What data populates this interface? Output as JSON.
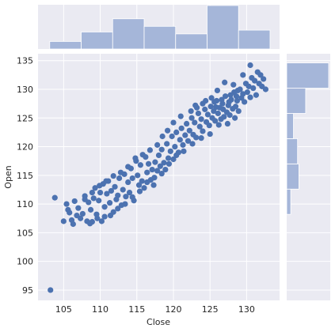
{
  "chart_data": {
    "type": "scatter",
    "xlabel": "Close",
    "ylabel": "Open",
    "xlim": [
      101.5,
      134.5
    ],
    "ylim": [
      93.2,
      136.2
    ],
    "xticks": [
      105,
      110,
      115,
      120,
      125,
      130
    ],
    "yticks": [
      95,
      100,
      105,
      110,
      115,
      120,
      125,
      130,
      135
    ],
    "colors": {
      "points": "#4c72b0",
      "hist": "#a5b6d9",
      "panel": "#eaeaf2"
    },
    "marginal_x_hist": {
      "bin_edges": [
        103.1,
        107.4,
        111.7,
        116.0,
        120.3,
        124.6,
        128.9,
        133.2
      ],
      "counts": [
        4,
        9,
        16,
        12,
        8,
        23,
        10
      ]
    },
    "marginal_y_hist": {
      "bin_edges": [
        95.0,
        99.4,
        103.8,
        108.2,
        112.6,
        117.0,
        121.4,
        125.8,
        130.2,
        134.6
      ],
      "counts": [
        0,
        0,
        0,
        3,
        9,
        8,
        5,
        14,
        31
      ]
    },
    "points": [
      [
        103.2,
        95.0
      ],
      [
        103.8,
        111.1
      ],
      [
        105.0,
        107.0
      ],
      [
        105.4,
        110.0
      ],
      [
        105.8,
        108.5
      ],
      [
        106.1,
        107.2
      ],
      [
        106.3,
        106.5
      ],
      [
        106.5,
        110.5
      ],
      [
        106.8,
        108.0
      ],
      [
        107.0,
        109.3
      ],
      [
        107.3,
        107.5
      ],
      [
        107.6,
        108.3
      ],
      [
        107.9,
        111.4
      ],
      [
        108.2,
        107.0
      ],
      [
        108.4,
        110.3
      ],
      [
        108.7,
        109.0
      ],
      [
        108.9,
        106.9
      ],
      [
        109.1,
        111.0
      ],
      [
        109.3,
        112.8
      ],
      [
        109.5,
        108.2
      ],
      [
        109.8,
        110.6
      ],
      [
        110.0,
        112.0
      ],
      [
        110.2,
        107.0
      ],
      [
        110.4,
        113.5
      ],
      [
        110.6,
        109.5
      ],
      [
        110.9,
        111.8
      ],
      [
        111.1,
        114.0
      ],
      [
        111.3,
        110.2
      ],
      [
        111.5,
        112.3
      ],
      [
        111.8,
        108.6
      ],
      [
        112.0,
        113.0
      ],
      [
        112.2,
        110.8
      ],
      [
        112.4,
        111.5
      ],
      [
        112.6,
        114.5
      ],
      [
        112.9,
        109.8
      ],
      [
        113.1,
        112.5
      ],
      [
        113.3,
        115.2
      ],
      [
        113.5,
        111.3
      ],
      [
        113.8,
        113.8
      ],
      [
        114.0,
        112.0
      ],
      [
        114.2,
        116.2
      ],
      [
        114.4,
        114.5
      ],
      [
        114.6,
        110.6
      ],
      [
        114.9,
        117.5
      ],
      [
        115.1,
        115.0
      ],
      [
        115.3,
        113.3
      ],
      [
        115.5,
        116.8
      ],
      [
        115.7,
        114.0
      ],
      [
        116.0,
        112.8
      ],
      [
        116.2,
        118.2
      ],
      [
        116.4,
        115.5
      ],
      [
        116.6,
        117.0
      ],
      [
        116.9,
        114.2
      ],
      [
        117.1,
        116.0
      ],
      [
        117.3,
        113.3
      ],
      [
        117.5,
        117.3
      ],
      [
        117.8,
        115.8
      ],
      [
        118.0,
        118.5
      ],
      [
        118.2,
        116.6
      ],
      [
        118.4,
        119.5
      ],
      [
        118.7,
        117.2
      ],
      [
        118.9,
        116.0
      ],
      [
        119.1,
        120.5
      ],
      [
        119.3,
        118.0
      ],
      [
        119.6,
        119.2
      ],
      [
        119.8,
        121.8
      ],
      [
        120.0,
        117.8
      ],
      [
        120.2,
        120.0
      ],
      [
        120.4,
        122.5
      ],
      [
        120.7,
        119.0
      ],
      [
        120.9,
        121.2
      ],
      [
        121.1,
        123.2
      ],
      [
        121.3,
        120.3
      ],
      [
        121.6,
        122.0
      ],
      [
        121.8,
        124.0
      ],
      [
        122.0,
        121.0
      ],
      [
        122.2,
        122.8
      ],
      [
        122.5,
        125.0
      ],
      [
        122.7,
        122.1
      ],
      [
        122.9,
        124.2
      ],
      [
        123.1,
        121.6
      ],
      [
        123.4,
        125.8
      ],
      [
        123.6,
        123.5
      ],
      [
        123.8,
        124.8
      ],
      [
        124.0,
        122.7
      ],
      [
        124.3,
        126.5
      ],
      [
        124.5,
        124.3
      ],
      [
        124.7,
        125.6
      ],
      [
        124.9,
        123.7
      ],
      [
        125.1,
        127.0
      ],
      [
        125.3,
        125.0
      ],
      [
        125.5,
        126.2
      ],
      [
        125.7,
        124.5
      ],
      [
        125.9,
        128.0
      ],
      [
        126.1,
        125.8
      ],
      [
        126.3,
        126.8
      ],
      [
        126.5,
        124.8
      ],
      [
        126.7,
        127.5
      ],
      [
        126.9,
        125.2
      ],
      [
        127.1,
        128.8
      ],
      [
        127.3,
        126.0
      ],
      [
        127.5,
        127.2
      ],
      [
        127.7,
        125.5
      ],
      [
        127.9,
        128.2
      ],
      [
        128.1,
        126.6
      ],
      [
        128.3,
        129.5
      ],
      [
        128.5,
        127.0
      ],
      [
        128.7,
        128.0
      ],
      [
        128.9,
        126.2
      ],
      [
        129.1,
        130.0
      ],
      [
        129.3,
        128.5
      ],
      [
        129.5,
        129.2
      ],
      [
        129.7,
        127.8
      ],
      [
        129.9,
        131.0
      ],
      [
        130.1,
        129.5
      ],
      [
        130.3,
        130.5
      ],
      [
        130.5,
        128.6
      ],
      [
        130.7,
        132.0
      ],
      [
        130.9,
        130.2
      ],
      [
        131.1,
        131.5
      ],
      [
        131.3,
        129.0
      ],
      [
        131.5,
        133.0
      ],
      [
        131.7,
        131.0
      ],
      [
        131.9,
        132.5
      ],
      [
        132.1,
        130.5
      ],
      [
        132.3,
        131.8
      ],
      [
        132.6,
        130.0
      ],
      [
        130.5,
        134.2
      ],
      [
        129.5,
        132.5
      ],
      [
        128.2,
        130.8
      ],
      [
        127.0,
        131.2
      ],
      [
        126.0,
        129.8
      ],
      [
        125.2,
        128.5
      ],
      [
        124.0,
        127.5
      ],
      [
        123.2,
        126.8
      ],
      [
        122.4,
        126.2
      ],
      [
        121.0,
        125.3
      ],
      [
        120.0,
        124.2
      ],
      [
        119.2,
        122.8
      ],
      [
        118.5,
        121.8
      ],
      [
        117.8,
        120.3
      ],
      [
        116.8,
        119.4
      ],
      [
        115.8,
        118.6
      ],
      [
        114.8,
        118.0
      ],
      [
        113.8,
        116.5
      ],
      [
        112.8,
        115.5
      ],
      [
        111.8,
        114.9
      ],
      [
        110.8,
        114.0
      ],
      [
        109.9,
        113.2
      ],
      [
        108.9,
        112.0
      ],
      [
        107.9,
        110.8
      ],
      [
        105.6,
        109.0
      ],
      [
        126.2,
        123.8
      ],
      [
        127.4,
        124.0
      ],
      [
        128.4,
        125.0
      ],
      [
        125.0,
        122.2
      ],
      [
        123.8,
        121.5
      ],
      [
        122.6,
        120.5
      ],
      [
        121.4,
        119.2
      ],
      [
        120.4,
        118.5
      ],
      [
        119.4,
        117.0
      ],
      [
        118.4,
        115.3
      ],
      [
        117.4,
        114.6
      ],
      [
        116.4,
        113.8
      ],
      [
        115.4,
        112.2
      ],
      [
        114.4,
        111.2
      ],
      [
        113.4,
        110.0
      ],
      [
        112.4,
        109.2
      ],
      [
        111.4,
        108.0
      ],
      [
        110.6,
        107.8
      ],
      [
        109.6,
        107.5
      ],
      [
        108.6,
        106.6
      ],
      [
        125.6,
        127.8
      ],
      [
        126.6,
        128.2
      ],
      [
        127.8,
        129.0
      ],
      [
        128.8,
        129.8
      ],
      [
        124.4,
        128.0
      ],
      [
        123.0,
        127.2
      ],
      [
        126.8,
        126.5
      ],
      [
        127.6,
        127.8
      ],
      [
        128.6,
        128.8
      ],
      [
        125.8,
        126.9
      ]
    ]
  }
}
